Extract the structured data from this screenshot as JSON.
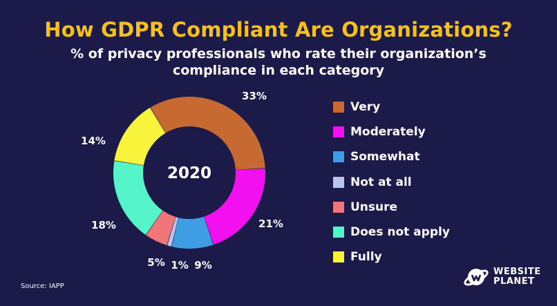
{
  "chart_data": {
    "type": "pie",
    "title": "How GDPR Compliant Are Organizations?",
    "subtitle_lines": [
      "% of privacy professionals who rate their organization’s",
      "compliance in each category"
    ],
    "center_label": "2020",
    "categories": [
      "Very",
      "Moderately",
      "Somewhat",
      "Not at all",
      "Unsure",
      "Does not apply",
      "Fully"
    ],
    "values": [
      33,
      21,
      9,
      1,
      5,
      18,
      14
    ],
    "value_labels": [
      "33%",
      "21%",
      "9%",
      "1%",
      "5%",
      "18%",
      "14%"
    ],
    "colors": [
      "#c66a32",
      "#f20ff0",
      "#3f9ee3",
      "#b9c3ec",
      "#ef7779",
      "#55f5c9",
      "#f7f43b"
    ],
    "legend_position": "right"
  },
  "source": "Source: IAPP",
  "logo": {
    "line1": "WEBSITE",
    "line2": "PLANET"
  }
}
